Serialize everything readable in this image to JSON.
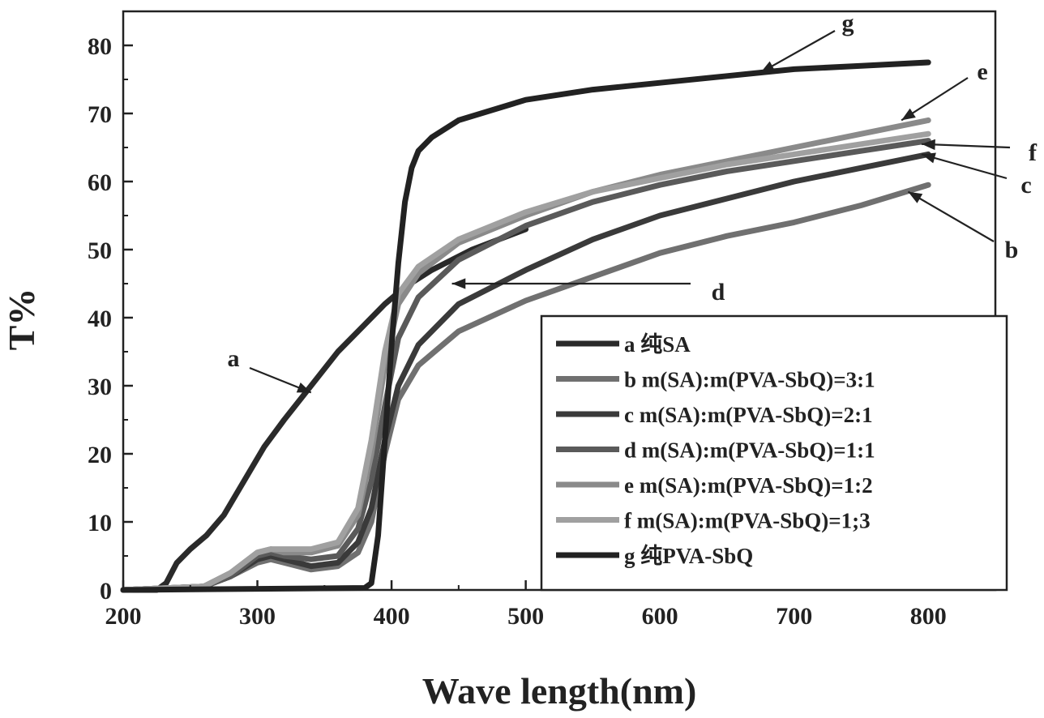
{
  "chart_data": {
    "type": "line",
    "xlabel": "Wave length(nm)",
    "ylabel": "T%",
    "xlim": [
      200,
      850
    ],
    "ylim": [
      0,
      85
    ],
    "x_ticks": [
      200,
      300,
      400,
      500,
      600,
      700,
      800
    ],
    "y_ticks": [
      0,
      10,
      20,
      30,
      40,
      50,
      60,
      70,
      80
    ],
    "grid": false,
    "legend_position": "bottom-right",
    "series": [
      {
        "id": "a",
        "name": "纯SA",
        "legend_label": "a  纯SA",
        "color": "#2a2a2a",
        "x": [
          200,
          225,
          232,
          240,
          250,
          262,
          275,
          290,
          305,
          320,
          340,
          360,
          380,
          395,
          410,
          430,
          460,
          500
        ],
        "y": [
          0,
          0,
          1,
          4,
          6,
          8,
          11,
          16,
          21,
          25,
          30,
          35,
          39,
          42,
          44.5,
          47,
          50,
          53
        ]
      },
      {
        "id": "b",
        "name": "m(SA):m(PVA-SbQ)=3:1",
        "legend_label": "b m(SA):m(PVA-SbQ)=3:1",
        "color": "#707070",
        "x": [
          200,
          260,
          280,
          300,
          310,
          320,
          340,
          360,
          375,
          385,
          395,
          405,
          420,
          450,
          500,
          550,
          600,
          650,
          700,
          750,
          800
        ],
        "y": [
          0,
          0.5,
          2,
          4,
          4.5,
          4,
          3,
          3.5,
          5.5,
          10,
          20,
          28,
          33,
          38,
          42.5,
          46,
          49.5,
          52,
          54,
          56.5,
          59.5
        ]
      },
      {
        "id": "c",
        "name": "m(SA):m(PVA-SbQ)=2:1",
        "legend_label": "c m(SA):m(PVA-SbQ)=2:1",
        "color": "#3a3a3a",
        "x": [
          200,
          260,
          280,
          300,
          310,
          320,
          340,
          360,
          375,
          385,
          395,
          405,
          420,
          450,
          500,
          550,
          600,
          650,
          700,
          750,
          800
        ],
        "y": [
          0,
          0.5,
          2,
          4.5,
          5,
          4.5,
          3.5,
          4,
          7,
          12,
          22,
          30,
          36,
          42,
          47,
          51.5,
          55,
          57.5,
          60,
          62,
          64
        ]
      },
      {
        "id": "d",
        "name": "m(SA):m(PVA-SbQ)=1:1",
        "legend_label": "d m(SA):m(PVA-SbQ)=1:1",
        "color": "#5a5a5a",
        "x": [
          200,
          260,
          280,
          300,
          310,
          320,
          340,
          360,
          375,
          385,
          395,
          405,
          420,
          450,
          500,
          550,
          600,
          650,
          700,
          750,
          800
        ],
        "y": [
          0,
          0.5,
          2,
          5,
          5.5,
          5,
          4.5,
          5,
          9,
          16,
          27,
          37,
          43,
          48.5,
          53.5,
          57,
          59.5,
          61.5,
          63,
          64.5,
          66
        ]
      },
      {
        "id": "e",
        "name": "m(SA):m(PVA-SbQ)=1:2",
        "legend_label": "e m(SA):m(PVA-SbQ)=1:2",
        "color": "#8a8a8a",
        "x": [
          200,
          260,
          280,
          300,
          310,
          320,
          340,
          360,
          375,
          385,
          395,
          405,
          420,
          450,
          500,
          550,
          600,
          650,
          700,
          750,
          800
        ],
        "y": [
          0,
          0.5,
          2.5,
          5.5,
          6,
          5.5,
          5.5,
          6.5,
          11,
          20,
          33,
          42,
          46.5,
          51,
          55,
          58.5,
          61,
          63,
          65,
          67,
          69
        ]
      },
      {
        "id": "f",
        "name": "m(SA):m(PVA-SbQ)=1;3",
        "legend_label": "f m(SA):m(PVA-SbQ)=1;3",
        "color": "#a0a0a0",
        "x": [
          200,
          260,
          280,
          300,
          310,
          320,
          340,
          360,
          375,
          385,
          395,
          405,
          420,
          450,
          500,
          550,
          600,
          650,
          700,
          750,
          800
        ],
        "y": [
          0,
          0.5,
          2.5,
          5.5,
          6,
          6,
          6,
          7,
          12,
          22,
          35,
          43.5,
          47.5,
          51.5,
          55.5,
          58.5,
          60.5,
          62.5,
          64,
          65.5,
          67
        ]
      },
      {
        "id": "g",
        "name": "纯PVA-SbQ",
        "legend_label": "g  纯PVA-SbQ",
        "color": "#222222",
        "x": [
          200,
          380,
          385,
          390,
          395,
          400,
          405,
          410,
          415,
          420,
          430,
          450,
          500,
          550,
          600,
          650,
          700,
          750,
          800
        ],
        "y": [
          0,
          0.3,
          1,
          8,
          22,
          36,
          48,
          57,
          62,
          64.5,
          66.5,
          69,
          72,
          73.5,
          74.5,
          75.5,
          76.5,
          77,
          77.5
        ]
      }
    ],
    "annotations": [
      {
        "label": "a",
        "series": "a",
        "target": [
          340,
          29
        ]
      },
      {
        "label": "b",
        "series": "b",
        "target": [
          785,
          58.5
        ]
      },
      {
        "label": "c",
        "series": "c",
        "target": [
          795,
          64
        ]
      },
      {
        "label": "d",
        "series": "d",
        "target": [
          445,
          45
        ]
      },
      {
        "label": "e",
        "series": "e",
        "target": [
          780,
          69
        ]
      },
      {
        "label": "f",
        "series": "f",
        "target": [
          795,
          65.5
        ]
      },
      {
        "label": "g",
        "series": "g",
        "target": [
          675,
          76
        ]
      }
    ]
  }
}
